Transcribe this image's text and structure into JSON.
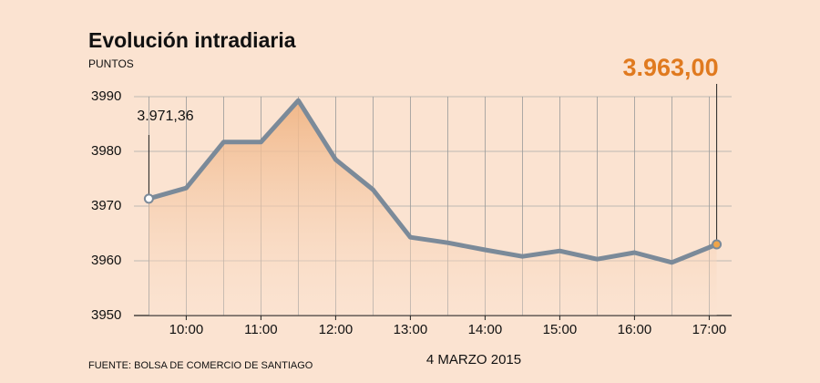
{
  "chart_data": {
    "type": "line",
    "title": "Evolución intradiaria",
    "subtitle": "PUNTOS",
    "x_label": "4 MARZO 2015",
    "source": "FUENTE: BOLSA DE COMERCIO DE SANTIAGO",
    "x": [
      9.5,
      10,
      10.5,
      11,
      11.5,
      12,
      12.5,
      13,
      13.5,
      14,
      14.5,
      15,
      15.5,
      16,
      16.5,
      17.1
    ],
    "series": [
      {
        "color": "#7b8a99",
        "values": [
          3971.36,
          3973.3,
          3981.7,
          3981.7,
          3989.3,
          3978.5,
          3973.0,
          3964.3,
          3963.3,
          3962.0,
          3960.8,
          3961.8,
          3960.3,
          3961.5,
          3959.7,
          3963.0
        ],
        "value_labels": [
          "3.971,36",
          null,
          null,
          null,
          null,
          null,
          null,
          null,
          null,
          null,
          null,
          null,
          null,
          null,
          null,
          "3.963,00"
        ]
      }
    ],
    "xlim": [
      9.3,
      17.3
    ],
    "xticks": [
      {
        "value": 10,
        "label": "10:00"
      },
      {
        "value": 11,
        "label": "11:00"
      },
      {
        "value": 12,
        "label": "12:00"
      },
      {
        "value": 13,
        "label": "13:00"
      },
      {
        "value": 14,
        "label": "14:00"
      },
      {
        "value": 15,
        "label": "15:00"
      },
      {
        "value": 16,
        "label": "16:00"
      },
      {
        "value": 17,
        "label": "17:00"
      }
    ],
    "ylim": [
      3950,
      3990
    ],
    "yticks": [
      3950,
      3960,
      3970,
      3980,
      3990
    ],
    "grid": true
  }
}
